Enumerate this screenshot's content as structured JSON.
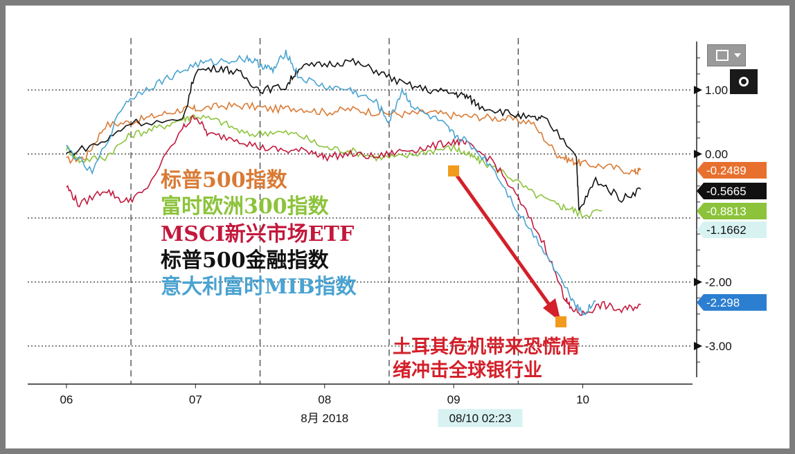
{
  "chart_data": {
    "type": "line",
    "x_labels": [
      "06",
      "07",
      "08",
      "09",
      "10"
    ],
    "x_title": "8月 2018",
    "y_ticks": [
      1.0,
      0.0,
      -2.0,
      -3.0
    ],
    "y_tick_labels": [
      "1.00",
      "0.00",
      "-2.00",
      "-3.00"
    ],
    "ylim": [
      -3.4,
      1.7
    ],
    "crosshair_label": "08/10 02:23",
    "legend": [
      {
        "label": "标普500指数",
        "color": "#d97a34"
      },
      {
        "label": "富时欧洲300指数",
        "color": "#8cc33b"
      },
      {
        "label": "MSCI新兴市场ETF",
        "color": "#c2183c"
      },
      {
        "label": "标普500金融指数",
        "color": "#111111"
      },
      {
        "label": "意大利富时MIB指数",
        "color": "#4aa3d1"
      }
    ],
    "badges": [
      {
        "text": "-0.2489",
        "value": -0.2489,
        "bg": "#e8702e",
        "fg": "#ffffff"
      },
      {
        "text": "-0.5665",
        "value": -0.5665,
        "bg": "#111111",
        "fg": "#ffffff"
      },
      {
        "text": "-0.8813",
        "value": -0.8813,
        "bg": "#8cc33b",
        "fg": "#ffffff"
      },
      {
        "text": "-1.1662",
        "value": -1.1662,
        "bg": "#d8f2f2",
        "fg": "#111111"
      },
      {
        "text": "-2.298",
        "value": -2.298,
        "bg": "#2c7fd0",
        "fg": "#ffffff"
      }
    ],
    "annotation": [
      "土耳其危机带来恐慌情",
      "绪冲击全球银行业"
    ],
    "series": [
      {
        "name": "标普500指数",
        "color": "#d97a34",
        "x": [
          6.0,
          6.15,
          6.3,
          6.5,
          6.7,
          6.9,
          7.0,
          7.2,
          7.4,
          7.6,
          7.8,
          8.0,
          8.2,
          8.4,
          8.6,
          8.8,
          9.0,
          9.2,
          9.4,
          9.6,
          9.8,
          9.9,
          10.0,
          10.2,
          10.4,
          10.45
        ],
        "y": [
          -0.1,
          -0.05,
          0.45,
          0.5,
          0.6,
          0.7,
          0.7,
          0.75,
          0.75,
          0.7,
          0.72,
          0.65,
          0.7,
          0.65,
          0.62,
          0.65,
          0.6,
          0.58,
          0.55,
          0.5,
          0.0,
          -0.1,
          -0.15,
          -0.2,
          -0.28,
          -0.25
        ]
      },
      {
        "name": "富时欧洲300指数",
        "color": "#8cc33b",
        "x": [
          6.0,
          6.1,
          6.3,
          6.5,
          6.7,
          6.9,
          7.0,
          7.2,
          7.4,
          7.6,
          7.8,
          8.0,
          8.2,
          8.4,
          8.6,
          8.8,
          9.0,
          9.1,
          9.2,
          9.4,
          9.6,
          9.8,
          9.9,
          10.0,
          10.15
        ],
        "y": [
          0.1,
          -0.1,
          -0.05,
          0.3,
          0.4,
          0.55,
          0.6,
          0.5,
          0.3,
          0.35,
          0.3,
          0.1,
          0.05,
          -0.05,
          -0.05,
          0.05,
          0.1,
          0.0,
          -0.1,
          -0.3,
          -0.6,
          -0.8,
          -0.85,
          -0.95,
          -0.88
        ]
      },
      {
        "name": "MSCI新兴市场ETF",
        "color": "#c2183c",
        "x": [
          6.0,
          6.1,
          6.3,
          6.45,
          6.6,
          6.9,
          7.0,
          7.1,
          7.3,
          7.5,
          7.7,
          7.9,
          8.0,
          8.2,
          8.4,
          8.6,
          8.8,
          9.0,
          9.1,
          9.3,
          9.5,
          9.7,
          9.85,
          9.9,
          10.0,
          10.15,
          10.3,
          10.45
        ],
        "y": [
          -0.5,
          -0.8,
          -0.55,
          -0.75,
          -0.6,
          0.4,
          0.6,
          0.3,
          0.25,
          0.1,
          0.05,
          0.05,
          -0.05,
          0.0,
          -0.05,
          0.05,
          0.1,
          0.2,
          0.15,
          -0.1,
          -0.7,
          -1.4,
          -2.2,
          -2.4,
          -2.5,
          -2.35,
          -2.45,
          -2.35
        ]
      },
      {
        "name": "标普500金融指数",
        "color": "#111111",
        "x": [
          6.0,
          6.3,
          6.5,
          6.9,
          7.0,
          7.2,
          7.35,
          7.5,
          7.7,
          7.8,
          8.0,
          8.2,
          8.4,
          8.6,
          8.8,
          9.0,
          9.1,
          9.2,
          9.4,
          9.6,
          9.7,
          9.95,
          9.97,
          10.1,
          10.3,
          10.45
        ],
        "y": [
          0.0,
          0.2,
          0.5,
          0.5,
          1.3,
          1.35,
          1.25,
          1.0,
          1.05,
          1.35,
          1.4,
          1.45,
          1.3,
          1.1,
          1.0,
          0.95,
          0.9,
          0.75,
          0.65,
          0.55,
          0.55,
          0.0,
          -0.9,
          -0.4,
          -0.7,
          -0.55
        ]
      },
      {
        "name": "意大利富时MIB指数",
        "color": "#4aa3d1",
        "x": [
          6.0,
          6.2,
          6.45,
          6.6,
          6.8,
          7.0,
          7.2,
          7.4,
          7.5,
          7.6,
          7.7,
          7.8,
          8.0,
          8.2,
          8.4,
          8.5,
          8.6,
          8.7,
          8.9,
          9.0,
          9.1,
          9.3,
          9.5,
          9.7,
          9.9,
          10.0,
          10.1
        ],
        "y": [
          0.1,
          -0.3,
          0.8,
          1.0,
          1.2,
          1.4,
          1.45,
          1.5,
          1.4,
          1.3,
          1.6,
          1.2,
          1.05,
          1.0,
          0.8,
          0.5,
          1.0,
          0.7,
          0.5,
          0.3,
          0.2,
          -0.2,
          -0.9,
          -1.5,
          -2.2,
          -2.5,
          -2.3
        ]
      }
    ]
  }
}
